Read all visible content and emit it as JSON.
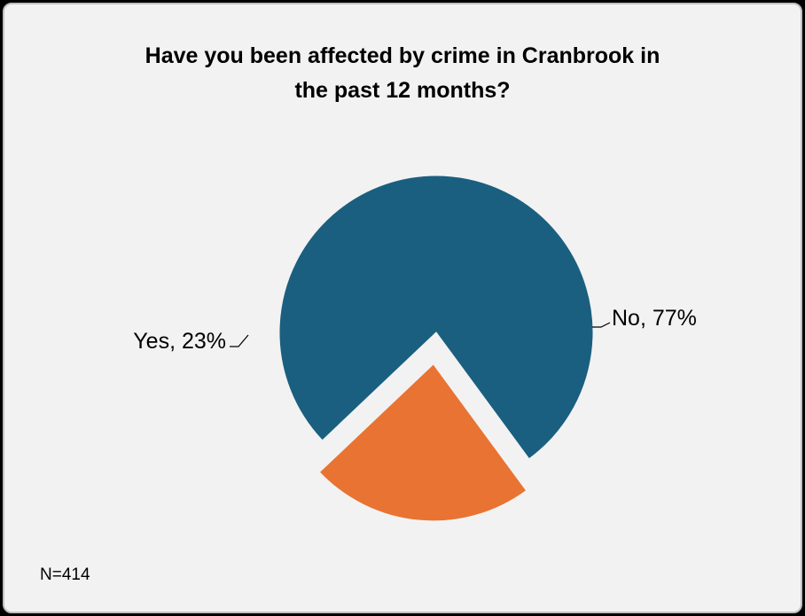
{
  "chart_data": {
    "type": "pie",
    "title_lines": [
      "Have you been affected by crime in Cranbrook in",
      "the past 12 months?"
    ],
    "slices": [
      {
        "category": "No",
        "value": 77,
        "color": "#1a5f7f",
        "label": "No, 77%"
      },
      {
        "category": "Yes",
        "value": 23,
        "color": "#e97332",
        "label": "Yes, 23%"
      }
    ],
    "note": "N=414"
  }
}
